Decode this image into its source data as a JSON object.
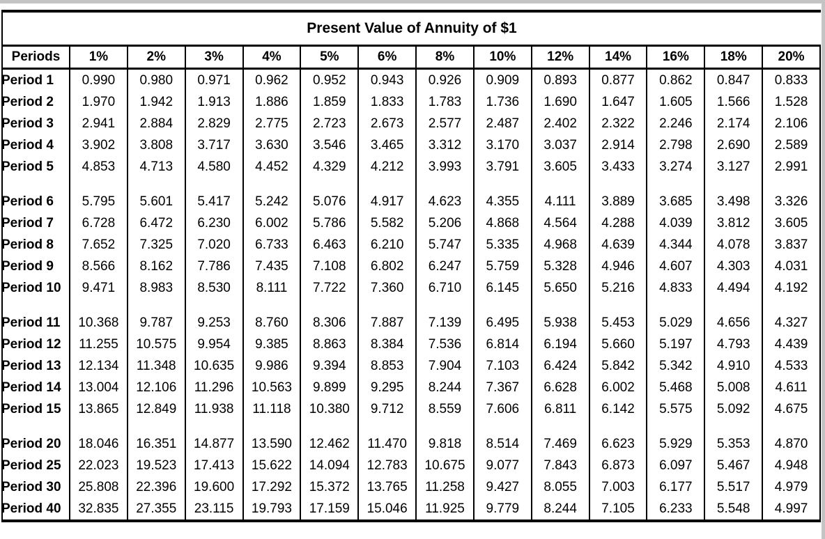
{
  "page": {
    "title": "Present Value of Annuity of $1"
  },
  "colors": {
    "border": "#000000",
    "page_edge": "#c4c4c4",
    "background": "#ffffff",
    "text": "#000000"
  },
  "table": {
    "columns": [
      "Periods",
      "1%",
      "2%",
      "3%",
      "4%",
      "5%",
      "6%",
      "8%",
      "10%",
      "12%",
      "14%",
      "16%",
      "18%",
      "20%"
    ],
    "row_groups": [
      {
        "rows": [
          {
            "label": "Period 1",
            "values": [
              "0.990",
              "0.980",
              "0.971",
              "0.962",
              "0.952",
              "0.943",
              "0.926",
              "0.909",
              "0.893",
              "0.877",
              "0.862",
              "0.847",
              "0.833"
            ]
          },
          {
            "label": "Period 2",
            "values": [
              "1.970",
              "1.942",
              "1.913",
              "1.886",
              "1.859",
              "1.833",
              "1.783",
              "1.736",
              "1.690",
              "1.647",
              "1.605",
              "1.566",
              "1.528"
            ]
          },
          {
            "label": "Period 3",
            "values": [
              "2.941",
              "2.884",
              "2.829",
              "2.775",
              "2.723",
              "2.673",
              "2.577",
              "2.487",
              "2.402",
              "2.322",
              "2.246",
              "2.174",
              "2.106"
            ]
          },
          {
            "label": "Period 4",
            "values": [
              "3.902",
              "3.808",
              "3.717",
              "3.630",
              "3.546",
              "3.465",
              "3.312",
              "3.170",
              "3.037",
              "2.914",
              "2.798",
              "2.690",
              "2.589"
            ]
          },
          {
            "label": "Period 5",
            "values": [
              "4.853",
              "4.713",
              "4.580",
              "4.452",
              "4.329",
              "4.212",
              "3.993",
              "3.791",
              "3.605",
              "3.433",
              "3.274",
              "3.127",
              "2.991"
            ]
          }
        ]
      },
      {
        "rows": [
          {
            "label": "Period 6",
            "values": [
              "5.795",
              "5.601",
              "5.417",
              "5.242",
              "5.076",
              "4.917",
              "4.623",
              "4.355",
              "4.111",
              "3.889",
              "3.685",
              "3.498",
              "3.326"
            ]
          },
          {
            "label": "Period 7",
            "values": [
              "6.728",
              "6.472",
              "6.230",
              "6.002",
              "5.786",
              "5.582",
              "5.206",
              "4.868",
              "4.564",
              "4.288",
              "4.039",
              "3.812",
              "3.605"
            ]
          },
          {
            "label": "Period 8",
            "values": [
              "7.652",
              "7.325",
              "7.020",
              "6.733",
              "6.463",
              "6.210",
              "5.747",
              "5.335",
              "4.968",
              "4.639",
              "4.344",
              "4.078",
              "3.837"
            ]
          },
          {
            "label": "Period 9",
            "values": [
              "8.566",
              "8.162",
              "7.786",
              "7.435",
              "7.108",
              "6.802",
              "6.247",
              "5.759",
              "5.328",
              "4.946",
              "4.607",
              "4.303",
              "4.031"
            ]
          },
          {
            "label": "Period 10",
            "values": [
              "9.471",
              "8.983",
              "8.530",
              "8.111",
              "7.722",
              "7.360",
              "6.710",
              "6.145",
              "5.650",
              "5.216",
              "4.833",
              "4.494",
              "4.192"
            ]
          }
        ]
      },
      {
        "rows": [
          {
            "label": "Period 11",
            "values": [
              "10.368",
              "9.787",
              "9.253",
              "8.760",
              "8.306",
              "7.887",
              "7.139",
              "6.495",
              "5.938",
              "5.453",
              "5.029",
              "4.656",
              "4.327"
            ]
          },
          {
            "label": "Period 12",
            "values": [
              "11.255",
              "10.575",
              "9.954",
              "9.385",
              "8.863",
              "8.384",
              "7.536",
              "6.814",
              "6.194",
              "5.660",
              "5.197",
              "4.793",
              "4.439"
            ]
          },
          {
            "label": "Period 13",
            "values": [
              "12.134",
              "11.348",
              "10.635",
              "9.986",
              "9.394",
              "8.853",
              "7.904",
              "7.103",
              "6.424",
              "5.842",
              "5.342",
              "4.910",
              "4.533"
            ]
          },
          {
            "label": "Period 14",
            "values": [
              "13.004",
              "12.106",
              "11.296",
              "10.563",
              "9.899",
              "9.295",
              "8.244",
              "7.367",
              "6.628",
              "6.002",
              "5.468",
              "5.008",
              "4.611"
            ]
          },
          {
            "label": "Period 15",
            "values": [
              "13.865",
              "12.849",
              "11.938",
              "11.118",
              "10.380",
              "9.712",
              "8.559",
              "7.606",
              "6.811",
              "6.142",
              "5.575",
              "5.092",
              "4.675"
            ]
          }
        ]
      },
      {
        "rows": [
          {
            "label": "Period 20",
            "values": [
              "18.046",
              "16.351",
              "14.877",
              "13.590",
              "12.462",
              "11.470",
              "9.818",
              "8.514",
              "7.469",
              "6.623",
              "5.929",
              "5.353",
              "4.870"
            ]
          },
          {
            "label": "Period 25",
            "values": [
              "22.023",
              "19.523",
              "17.413",
              "15.622",
              "14.094",
              "12.783",
              "10.675",
              "9.077",
              "7.843",
              "6.873",
              "6.097",
              "5.467",
              "4.948"
            ]
          },
          {
            "label": "Period 30",
            "values": [
              "25.808",
              "22.396",
              "19.600",
              "17.292",
              "15.372",
              "13.765",
              "11.258",
              "9.427",
              "8.055",
              "7.003",
              "6.177",
              "5.517",
              "4.979"
            ]
          },
          {
            "label": "Period 40",
            "values": [
              "32.835",
              "27.355",
              "23.115",
              "19.793",
              "17.159",
              "15.046",
              "11.925",
              "9.779",
              "8.244",
              "7.105",
              "6.233",
              "5.548",
              "4.997"
            ]
          }
        ]
      }
    ]
  }
}
